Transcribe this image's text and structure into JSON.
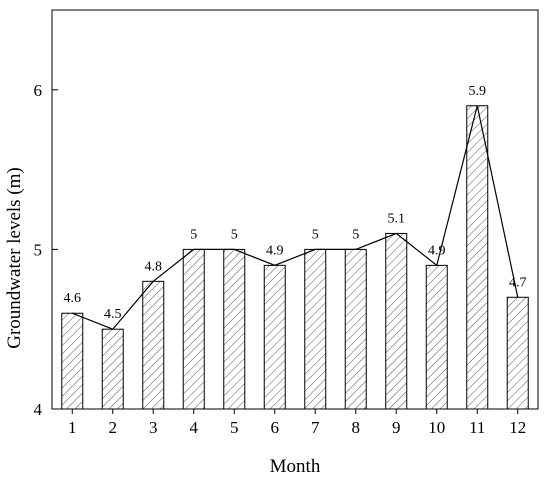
{
  "chart_data": {
    "type": "bar",
    "categories": [
      "1",
      "2",
      "3",
      "4",
      "5",
      "6",
      "7",
      "8",
      "9",
      "10",
      "11",
      "12"
    ],
    "values": [
      4.6,
      4.5,
      4.8,
      5.0,
      5.0,
      4.9,
      5.0,
      5.0,
      5.1,
      4.9,
      5.9,
      4.7
    ],
    "data_labels": [
      "4.6",
      "4.5",
      "4.8",
      "5",
      "5",
      "4.9",
      "5",
      "5",
      "5.1",
      "4.9",
      "5.9",
      "4.7"
    ],
    "overlay_line": true,
    "bar_fill": "diagonal-hatch",
    "title": "",
    "xlabel": "Month",
    "ylabel": "Groundwater levels (m)",
    "ylim": [
      4,
      6.5
    ],
    "yticks": [
      4,
      5,
      6
    ],
    "ytick_labels": [
      "4",
      "5",
      "6"
    ],
    "grid": false,
    "legend": "none",
    "colors": {
      "bar_edge": "#000000",
      "hatch": "#555555",
      "line": "#000000",
      "background": "#ffffff"
    }
  }
}
